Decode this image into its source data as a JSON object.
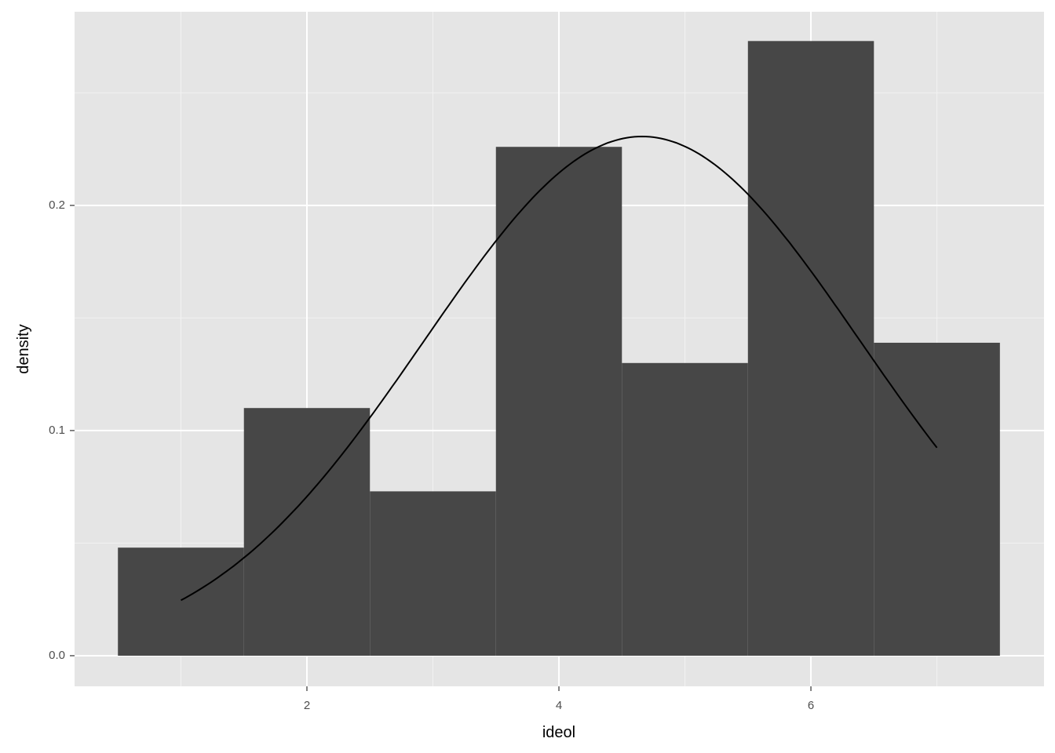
{
  "chart_data": {
    "type": "bar",
    "subtype": "histogram with normal density curve",
    "title": "",
    "xlabel": "ideol",
    "ylabel": "density",
    "xlim": [
      0.156,
      7.85
    ],
    "ylim": [
      -0.0136,
      0.286
    ],
    "grid": true,
    "x_ticks": [
      2,
      4,
      6
    ],
    "x_tick_labels": [
      "2",
      "4",
      "6"
    ],
    "y_ticks": [
      0.0,
      0.1,
      0.2
    ],
    "y_tick_labels": [
      "0.0",
      "0.1",
      "0.2"
    ],
    "bins": [
      {
        "x0": 0.5,
        "x1": 1.5,
        "density": 0.048
      },
      {
        "x0": 1.5,
        "x1": 2.5,
        "density": 0.11
      },
      {
        "x0": 2.5,
        "x1": 3.5,
        "density": 0.073
      },
      {
        "x0": 3.5,
        "x1": 4.5,
        "density": 0.226
      },
      {
        "x0": 4.5,
        "x1": 5.5,
        "density": 0.13
      },
      {
        "x0": 5.5,
        "x1": 6.5,
        "density": 0.273
      },
      {
        "x0": 6.5,
        "x1": 7.5,
        "density": 0.139
      }
    ],
    "density_curve": {
      "distribution": "normal",
      "mean": 4.66,
      "sd": 1.73,
      "x_range": [
        1,
        7
      ]
    },
    "colors": {
      "bar": "#474747",
      "panel": "#e5e5e5",
      "grid": "#ffffff",
      "curve": "#000000"
    }
  }
}
